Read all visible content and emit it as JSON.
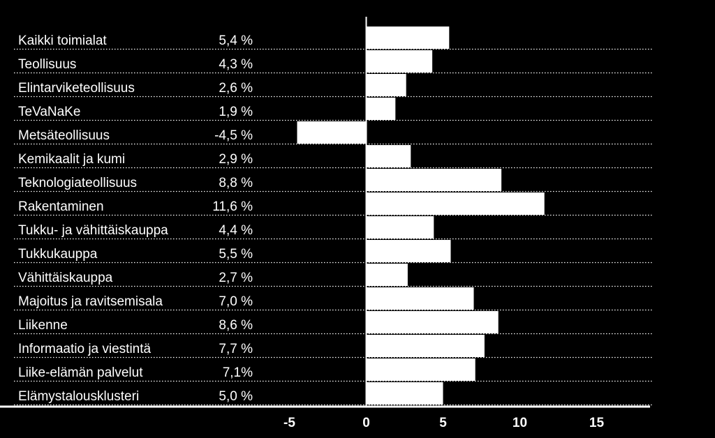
{
  "chart_data": {
    "type": "bar",
    "orientation": "horizontal",
    "title": "",
    "xlabel": "",
    "ylabel": "",
    "xlim": [
      -5,
      15
    ],
    "xticks": [
      "-5",
      "0",
      "5",
      "10",
      "15"
    ],
    "categories": [
      "Kaikki toimialat",
      "Teollisuus",
      "Elintarviketeollisuus",
      "TeVaNaKe",
      "Metsäteollisuus",
      "Kemikaalit ja kumi",
      "Teknologiateollisuus",
      "Rakentaminen",
      "Tukku- ja vähittäiskauppa",
      "Tukkukauppa",
      "Vähittäiskauppa",
      "Majoitus ja ravitsemisala",
      "Liikenne",
      "Informaatio ja viestintä",
      "Liike-elämän palvelut",
      "Elämystalousklusteri"
    ],
    "values": [
      5.4,
      4.3,
      2.6,
      1.9,
      -4.5,
      2.9,
      8.8,
      11.6,
      4.4,
      5.5,
      2.7,
      7.0,
      8.6,
      7.7,
      7.1,
      5.0
    ],
    "value_labels": [
      "5,4 %",
      "4,3 %",
      "2,6 %",
      "1,9 %",
      "-4,5 %",
      "2,9 %",
      "8,8 %",
      "11,6 %",
      "4,4 %",
      "5,5 %",
      "2,7 %",
      "7,0 %",
      "8,6 %",
      "7,7 %",
      "7,1%",
      "5,0 %"
    ],
    "grid": "dotted row separators",
    "colors": {
      "background": "#000000",
      "bar_fill": "#ffffff",
      "text": "#ffffff"
    }
  }
}
